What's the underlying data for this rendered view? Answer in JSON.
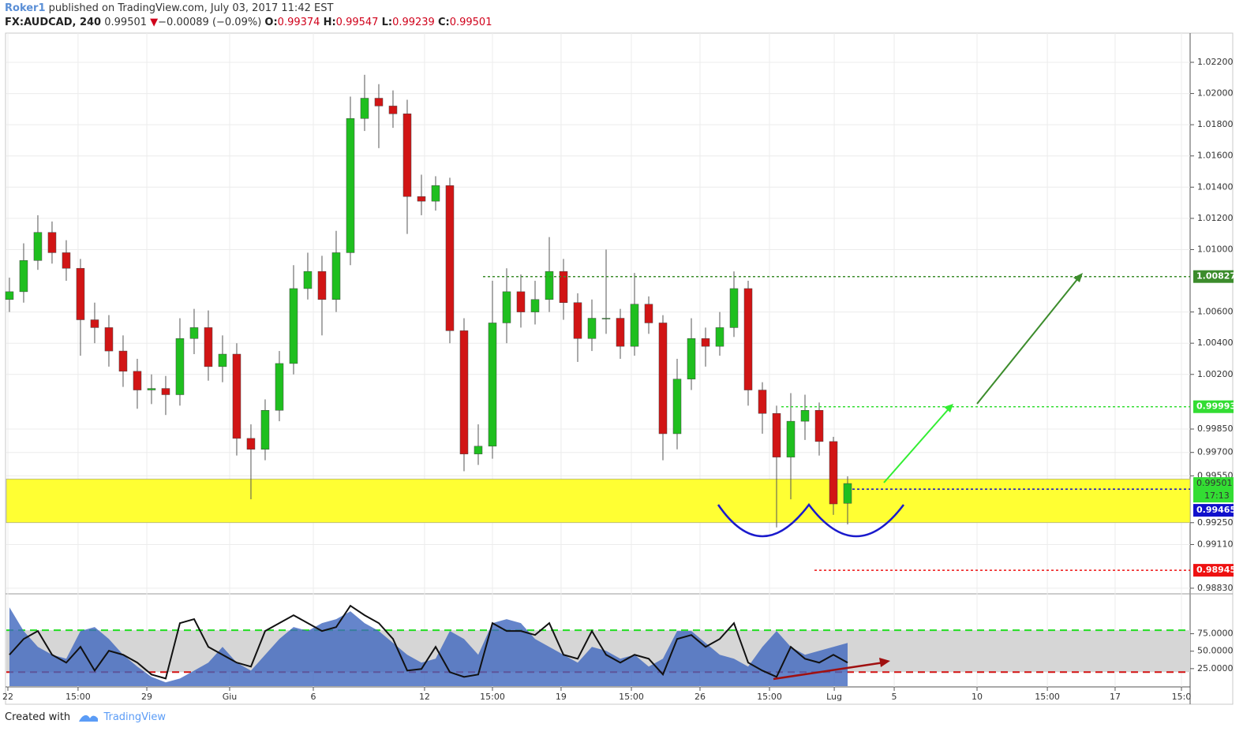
{
  "header": {
    "author": "Roker1",
    "published": "published on TradingView.com, July 03, 2017 11:42 EST",
    "symbol": "FX:AUDCAD, 240",
    "last": "0.99501",
    "change_icon": "▼",
    "change": "−0.00089 (−0.09%)",
    "open_label": "O:",
    "open": "0.99374",
    "high_label": "H:",
    "high": "0.99547",
    "low_label": "L:",
    "low": "0.99239",
    "close_label": "C:",
    "close": "0.99501"
  },
  "chart_data": [
    {
      "type": "candlestick",
      "up_color": "#1fbf1f",
      "down_color": "#d11515",
      "xlim": [
        -0.22,
        83.11
      ],
      "xticks": [
        {
          "value": -0.11,
          "label": "22"
        },
        {
          "value": 4.83,
          "label": "15:00"
        },
        {
          "value": 9.67,
          "label": "29"
        },
        {
          "value": 15.5,
          "label": "Giu"
        },
        {
          "value": 21.39,
          "label": "6"
        },
        {
          "value": 29.22,
          "label": "12"
        },
        {
          "value": 34,
          "label": "15:00"
        },
        {
          "value": 38.83,
          "label": "19"
        },
        {
          "value": 43.78,
          "label": "15:00"
        },
        {
          "value": 48.61,
          "label": "26"
        },
        {
          "value": 53.5,
          "label": "15:00"
        },
        {
          "value": 58.06,
          "label": "Lug"
        },
        {
          "value": 62.28,
          "label": "5"
        },
        {
          "value": 68.11,
          "label": "10"
        },
        {
          "value": 73.06,
          "label": "15:00"
        },
        {
          "value": 77.83,
          "label": "17"
        },
        {
          "value": 82.5,
          "label": "15:0"
        }
      ],
      "ylim": [
        0.98799,
        1.02387
      ],
      "yticks": [
        {
          "value": 1.022,
          "label": "1.02200"
        },
        {
          "value": 1.02,
          "label": "1.02000"
        },
        {
          "value": 1.018,
          "label": "1.01800"
        },
        {
          "value": 1.016,
          "label": "1.01600"
        },
        {
          "value": 1.014,
          "label": "1.01400"
        },
        {
          "value": 1.012,
          "label": "1.01200"
        },
        {
          "value": 1.01,
          "label": "1.01000"
        },
        {
          "value": 1.006,
          "label": "1.00600"
        },
        {
          "value": 1.004,
          "label": "1.00400"
        },
        {
          "value": 1.002,
          "label": "1.00200"
        },
        {
          "value": 0.9985,
          "label": "0.99850"
        },
        {
          "value": 0.997,
          "label": "0.99700"
        },
        {
          "value": 0.9955,
          "label": "0.99550"
        },
        {
          "value": 0.9925,
          "label": "0.99250"
        },
        {
          "value": 0.9911,
          "label": "0.99110"
        },
        {
          "value": 0.9883,
          "label": "0.98830"
        }
      ],
      "grid": true,
      "open": [
        1.0068,
        1.0073,
        1.0093,
        1.0111,
        1.0098,
        1.0088,
        1.0055,
        1.005,
        1.0035,
        1.0022,
        1.001,
        1.0011,
        1.0007,
        1.0043,
        1.005,
        1.0025,
        1.0033,
        0.9979,
        0.9972,
        0.9997,
        1.0027,
        1.0075,
        1.0086,
        1.0068,
        1.0098,
        1.0184,
        1.0197,
        1.0192,
        1.0187,
        1.0134,
        1.0131,
        1.0141,
        1.0048,
        0.9969,
        0.9974,
        1.0053,
        1.0073,
        1.006,
        1.0068,
        1.0086,
        1.0066,
        1.0043,
        1.0056,
        1.0056,
        1.0038,
        1.0065,
        1.0053,
        0.9982,
        1.0017,
        1.0043,
        1.0038,
        1.005,
        1.0075,
        1.001,
        0.9995,
        0.9967,
        0.999,
        0.9997,
        0.9977,
        0.99374
      ],
      "high": [
        1.0082,
        1.0104,
        1.0122,
        1.0118,
        1.0106,
        1.0094,
        1.0066,
        1.0058,
        1.0045,
        1.003,
        1.002,
        1.0019,
        1.0056,
        1.0062,
        1.0061,
        1.0045,
        1.004,
        0.9988,
        1.0004,
        1.0035,
        1.009,
        1.0098,
        1.0096,
        1.0112,
        1.0198,
        1.0212,
        1.0206,
        1.0202,
        1.0196,
        1.0148,
        1.0147,
        1.0146,
        1.0056,
        0.9988,
        1.008,
        1.0088,
        1.0084,
        1.008,
        1.0108,
        1.0094,
        1.0072,
        1.0068,
        1.01,
        1.0062,
        1.0085,
        1.007,
        1.0058,
        1.003,
        1.0056,
        1.005,
        1.006,
        1.0086,
        1.008,
        1.0015,
        1.0,
        1.0008,
        1.0007,
        1.0002,
        0.998,
        0.99547
      ],
      "low": [
        1.006,
        1.0066,
        1.0087,
        1.0091,
        1.008,
        1.0032,
        1.004,
        1.0025,
        1.0012,
        0.9998,
        1.0001,
        0.9994,
        1.0,
        1.0033,
        1.0016,
        1.0015,
        0.9968,
        0.994,
        0.9965,
        0.999,
        1.002,
        1.0068,
        1.0045,
        1.006,
        1.009,
        1.0176,
        1.0165,
        1.0178,
        1.011,
        1.0122,
        1.0125,
        1.004,
        0.9958,
        0.9962,
        0.9966,
        1.004,
        1.005,
        1.0052,
        1.006,
        1.0055,
        1.0028,
        1.0035,
        1.0046,
        1.003,
        1.0032,
        1.0046,
        0.9965,
        0.9972,
        1.001,
        1.0025,
        1.0032,
        1.0044,
        1.0,
        0.9982,
        0.9922,
        0.994,
        0.9978,
        0.9968,
        0.993,
        0.99239
      ],
      "close": [
        1.0073,
        1.0093,
        1.0111,
        1.0098,
        1.0088,
        1.0055,
        1.005,
        1.0035,
        1.0022,
        1.001,
        1.0011,
        1.0007,
        1.0043,
        1.005,
        1.0025,
        1.0033,
        0.9979,
        0.9972,
        0.9997,
        1.0027,
        1.0075,
        1.0086,
        1.0068,
        1.0098,
        1.0184,
        1.0197,
        1.0192,
        1.0187,
        1.0134,
        1.0131,
        1.0141,
        1.0048,
        0.9969,
        0.9974,
        1.0053,
        1.0073,
        1.006,
        1.0068,
        1.0086,
        1.0066,
        1.0043,
        1.0056,
        1.0056,
        1.0038,
        1.0065,
        1.0053,
        0.9982,
        1.0017,
        1.0043,
        1.0038,
        1.005,
        1.0075,
        1.001,
        0.9995,
        0.9967,
        0.999,
        0.9997,
        0.9977,
        0.9937,
        0.99501
      ],
      "zone": {
        "from": 0.9925,
        "to": 0.9953,
        "color": "#ffff33"
      },
      "levels": [
        {
          "value": 1.00827,
          "label": "1.00827",
          "color": "#3c8c2c"
        },
        {
          "value": 0.99993,
          "label": "0.99993",
          "color": "#33dd33"
        },
        {
          "value": 0.98945,
          "label": "0.98945",
          "color": "#ee1111"
        },
        {
          "value": 0.99465,
          "label": "0.99465",
          "color": "#1111cc"
        }
      ],
      "last_price": {
        "value": 0.99501,
        "label": "0.99501",
        "countdown": "17:13",
        "color": "#33dd33"
      }
    },
    {
      "type": "line",
      "ylim": [
        0,
        131
      ],
      "yticks": [
        {
          "value": 75,
          "label": "75.0000"
        },
        {
          "value": 50,
          "label": "50.0000"
        },
        {
          "value": 25,
          "label": "25.0000"
        }
      ],
      "band": {
        "from": 20,
        "to": 80,
        "color": "#d6d6d6"
      },
      "bands": [
        {
          "value": 80,
          "color": "#22dd22"
        },
        {
          "value": 20,
          "color": "#d41111"
        }
      ],
      "series": [
        {
          "style": "area",
          "color": "#3f66be",
          "values": [
            112.8,
            78.9,
            56.2,
            44.9,
            39.2,
            78.9,
            84.5,
            67.5,
            44.9,
            27.9,
            13.2,
            5.3,
            10.9,
            22.2,
            33.6,
            56.2,
            33.6,
            22.2,
            44.9,
            67.5,
            84.5,
            78.9,
            90.2,
            95.9,
            107.2,
            90.2,
            78.9,
            61.9,
            44.9,
            33.6,
            39.2,
            78.9,
            67.5,
            44.9,
            90.2,
            95.9,
            90.2,
            67.5,
            56.2,
            44.9,
            33.6,
            56.2,
            50.6,
            39.2,
            44.9,
            27.9,
            39.2,
            78.9,
            78.9,
            61.9,
            44.9,
            39.2,
            27.9,
            56.2,
            78.9,
            56.2,
            44.9,
            50.6,
            56.2,
            61.9
          ]
        },
        {
          "style": "line",
          "color": "#111111",
          "values": [
            44.9,
            67.5,
            78.9,
            44.9,
            33.6,
            56.2,
            22.2,
            50.6,
            44.9,
            33.6,
            16.6,
            10.9,
            90.2,
            95.9,
            56.2,
            44.9,
            33.6,
            27.9,
            78.9,
            90.2,
            101.5,
            90.2,
            78.9,
            84.5,
            115.1,
            101.5,
            90.2,
            67.5,
            22.2,
            24.5,
            56.2,
            20.0,
            13.2,
            16.6,
            90.2,
            78.9,
            78.9,
            73.2,
            90.2,
            44.9,
            39.2,
            78.9,
            44.9,
            33.6,
            44.9,
            39.2,
            16.6,
            67.5,
            73.2,
            56.2,
            67.5,
            90.2,
            33.6,
            22.2,
            13.2,
            56.2,
            39.2,
            33.6,
            44.9,
            33.6
          ]
        }
      ]
    }
  ],
  "footer": {
    "created": "Created with",
    "brand": "TradingView"
  }
}
